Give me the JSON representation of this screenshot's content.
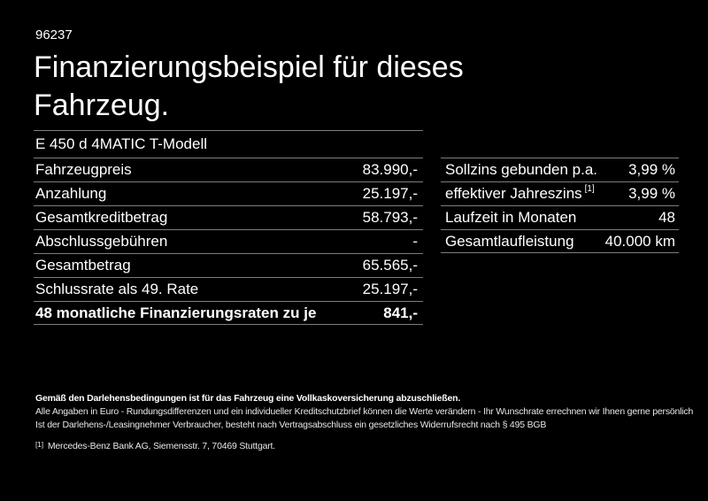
{
  "page": {
    "background_color": "#000000",
    "text_color": "#ffffff",
    "divider_color": "#7d7d7d"
  },
  "document_number": "96237",
  "title": {
    "line1": "Finanzierungsbeispiel für dieses",
    "line2": "Fahrzeug."
  },
  "vehicle_model": "E 450 d 4MATIC T-Modell",
  "finance_table": {
    "rows": [
      {
        "label": "Fahrzeugpreis",
        "value": "83.990,-"
      },
      {
        "label": "Anzahlung",
        "value": "25.197,-"
      },
      {
        "label": "Gesamtkreditbetrag",
        "value": "58.793,-"
      },
      {
        "label": "Abschlussgebühren",
        "value": "-"
      },
      {
        "label": "Gesamtbetrag",
        "value": "65.565,-"
      },
      {
        "label": "Schlussrate als 49. Rate",
        "value": "25.197,-"
      },
      {
        "label": "48 monatliche Finanzierungsraten zu je",
        "value": "841,-"
      }
    ]
  },
  "rates_table": {
    "rows": [
      {
        "label": "Sollzins gebunden p.a.",
        "value": "3,99 %"
      },
      {
        "label": "effektiver Jahreszins",
        "sup": "[1]",
        "value": "3,99 %"
      },
      {
        "label": "Laufzeit in Monaten",
        "value": "48"
      },
      {
        "label": "Gesamtlaufleistung",
        "value": "40.000 km"
      }
    ]
  },
  "footer": {
    "line1": "Gemäß den Darlehensbedingungen ist für das Fahrzeug eine Vollkaskoversicherung abzuschließen.",
    "line2": "Alle Angaben in Euro - Rundungsdifferenzen und ein individueller Kreditschutzbrief können die Werte verändern - Ihr Wunschrate errechnen wir Ihnen gerne persönlich",
    "line3": "Ist der Darlehens-/Leasingnehmer Verbraucher, besteht nach Vertragsabschluss ein gesetzliches Widerrufsrecht nach § 495 BGB",
    "footnote_marker": "[1]",
    "footnote_text": "Mercedes-Benz Bank AG, Siemensstr. 7, 70469 Stuttgart."
  }
}
